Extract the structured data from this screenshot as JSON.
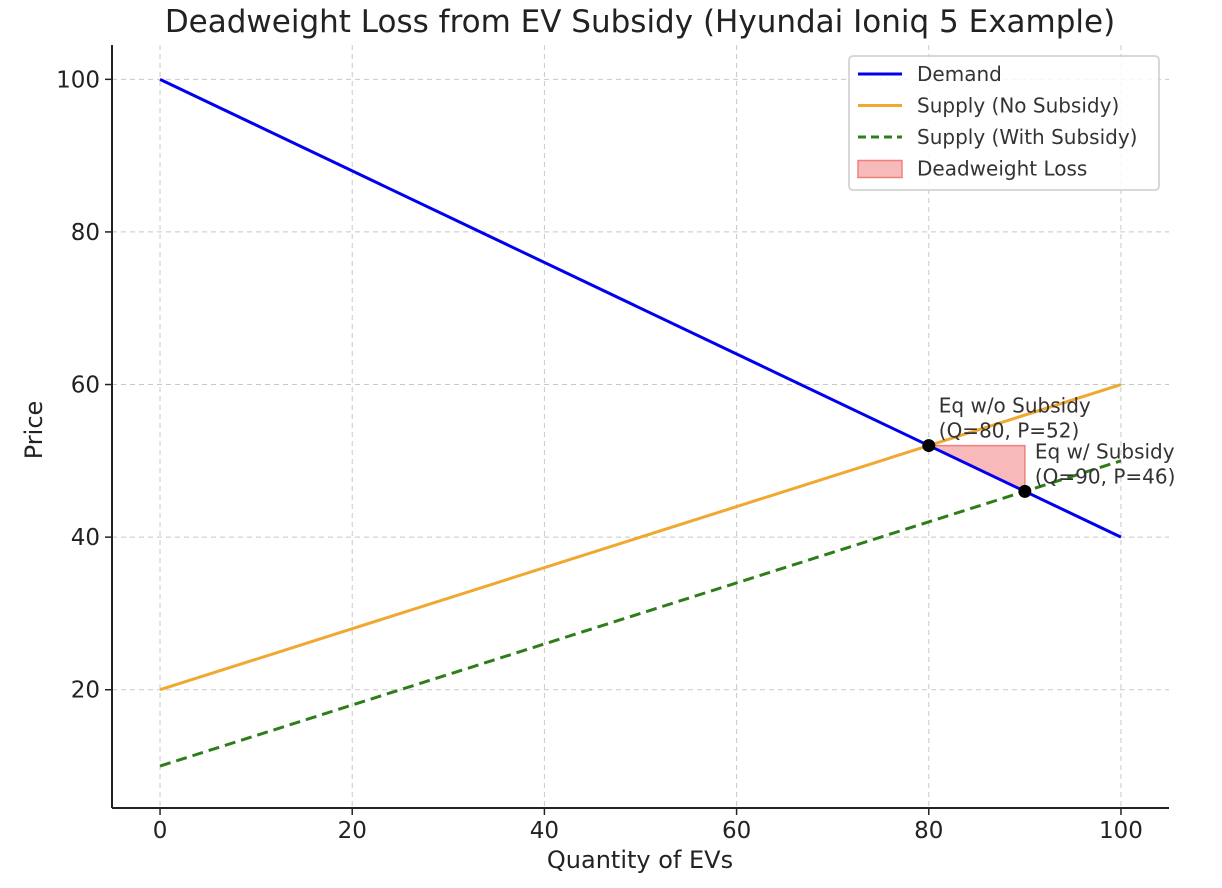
{
  "chart_data": {
    "type": "line",
    "title": "Deadweight Loss from EV Subsidy (Hyundai Ioniq 5 Example)",
    "xlabel": "Quantity of EVs",
    "ylabel": "Price",
    "xlim": [
      -5,
      105
    ],
    "ylim": [
      4.5,
      104.5
    ],
    "xticks": [
      0,
      20,
      40,
      60,
      80,
      100
    ],
    "yticks": [
      20,
      40,
      60,
      80,
      100
    ],
    "grid": true,
    "legend_position": "top-right",
    "series": [
      {
        "name": "Demand",
        "color": "#0000ee",
        "style": "solid",
        "x": [
          0,
          100
        ],
        "y": [
          100,
          40
        ]
      },
      {
        "name": "Supply (No Subsidy)",
        "color": "#f0a830",
        "style": "solid",
        "x": [
          0,
          100
        ],
        "y": [
          20,
          60
        ]
      },
      {
        "name": "Supply (With Subsidy)",
        "color": "#2e7d1a",
        "style": "dashed",
        "x": [
          0,
          100
        ],
        "y": [
          10,
          50
        ]
      }
    ],
    "deadweight_loss": {
      "name": "Deadweight Loss",
      "color": "#f08080",
      "points": [
        [
          80,
          52
        ],
        [
          90,
          52
        ],
        [
          90,
          46
        ]
      ]
    },
    "equilibria": [
      {
        "x": 80,
        "y": 52,
        "line1": "Eq w/o Subsidy",
        "line2": "(Q=80, P=52)"
      },
      {
        "x": 90,
        "y": 46,
        "line1": "Eq w/ Subsidy",
        "line2": "(Q=90, P=46)"
      }
    ]
  }
}
